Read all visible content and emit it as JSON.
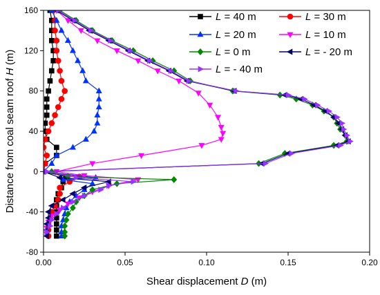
{
  "chart_data": {
    "type": "line",
    "orientation": "vertical-profile",
    "xlabel": {
      "text": "Shear displacement ",
      "var": "D",
      "unit": " (m)"
    },
    "ylabel": {
      "text": "Distance from coal seam roof ",
      "var": "H",
      "unit": " (m)"
    },
    "xlim": [
      0.0,
      0.2
    ],
    "ylim": [
      -80,
      160
    ],
    "xticks": [
      0.0,
      0.05,
      0.1,
      0.15,
      0.2
    ],
    "xtick_labels": [
      "0.00",
      "0.05",
      "0.10",
      "0.15",
      "0.20"
    ],
    "yticks": [
      -80,
      -40,
      0,
      40,
      80,
      120,
      160
    ],
    "ytick_labels": [
      "-80",
      "-40",
      "0",
      "40",
      "80",
      "120",
      "160"
    ],
    "grid": false,
    "legend_placement": "top-right",
    "series": [
      {
        "name": {
          "var": "L",
          "text": " = 40 m"
        },
        "color": "#000000",
        "marker": "square",
        "points": [
          [
            0.004,
            160
          ],
          [
            0.005,
            150
          ],
          [
            0.005,
            140
          ],
          [
            0.005,
            130
          ],
          [
            0.006,
            120
          ],
          [
            0.006,
            110
          ],
          [
            0.005,
            100
          ],
          [
            0.004,
            90
          ],
          [
            0.003,
            80
          ],
          [
            0.002,
            72
          ],
          [
            0.002,
            64
          ],
          [
            0.002,
            56
          ],
          [
            0.001,
            48
          ],
          [
            0.001,
            40
          ],
          [
            0.002,
            32
          ],
          [
            0.008,
            24
          ],
          [
            0.008,
            16
          ],
          [
            0.001,
            8
          ],
          [
            0.0,
            0
          ],
          [
            0.014,
            -5
          ],
          [
            0.012,
            -10
          ],
          [
            0.011,
            -16
          ],
          [
            0.009,
            -22
          ],
          [
            0.008,
            -28
          ],
          [
            0.008,
            -34
          ],
          [
            0.008,
            -40
          ],
          [
            0.008,
            -46
          ],
          [
            0.008,
            -52
          ],
          [
            0.008,
            -58
          ],
          [
            0.008,
            -64
          ]
        ]
      },
      {
        "name": {
          "var": "L",
          "text": " = 30 m"
        },
        "color": "#ff0000",
        "marker": "circle",
        "points": [
          [
            0.006,
            160
          ],
          [
            0.007,
            150
          ],
          [
            0.007,
            140
          ],
          [
            0.008,
            130
          ],
          [
            0.008,
            120
          ],
          [
            0.009,
            110
          ],
          [
            0.01,
            100
          ],
          [
            0.011,
            90
          ],
          [
            0.013,
            80
          ],
          [
            0.011,
            72
          ],
          [
            0.009,
            64
          ],
          [
            0.007,
            56
          ],
          [
            0.005,
            48
          ],
          [
            0.003,
            40
          ],
          [
            0.001,
            32
          ],
          [
            0.0,
            24
          ],
          [
            0.002,
            16
          ],
          [
            0.001,
            8
          ],
          [
            0.0,
            0
          ],
          [
            0.022,
            -5
          ],
          [
            0.016,
            -10
          ],
          [
            0.01,
            -16
          ],
          [
            0.01,
            -22
          ],
          [
            0.009,
            -28
          ],
          [
            0.007,
            -34
          ],
          [
            0.005,
            -40
          ],
          [
            0.004,
            -46
          ],
          [
            0.003,
            -52
          ],
          [
            0.003,
            -58
          ],
          [
            0.003,
            -64
          ]
        ]
      },
      {
        "name": {
          "var": "L",
          "text": " = 20 m"
        },
        "color": "#0033ff",
        "marker": "triangle-up",
        "points": [
          [
            0.005,
            160
          ],
          [
            0.008,
            150
          ],
          [
            0.011,
            140
          ],
          [
            0.015,
            130
          ],
          [
            0.018,
            120
          ],
          [
            0.021,
            110
          ],
          [
            0.024,
            100
          ],
          [
            0.026,
            90
          ],
          [
            0.034,
            80
          ],
          [
            0.034,
            72
          ],
          [
            0.034,
            64
          ],
          [
            0.033,
            56
          ],
          [
            0.033,
            48
          ],
          [
            0.031,
            40
          ],
          [
            0.026,
            32
          ],
          [
            0.018,
            24
          ],
          [
            0.008,
            16
          ],
          [
            0.005,
            8
          ],
          [
            0.0,
            0
          ],
          [
            0.032,
            -6
          ],
          [
            0.012,
            -8
          ],
          [
            0.03,
            -12
          ],
          [
            0.025,
            -18
          ],
          [
            0.02,
            -24
          ],
          [
            0.016,
            -30
          ],
          [
            0.014,
            -36
          ],
          [
            0.013,
            -42
          ],
          [
            0.012,
            -48
          ],
          [
            0.011,
            -54
          ],
          [
            0.011,
            -60
          ],
          [
            0.011,
            -64
          ]
        ]
      },
      {
        "name": {
          "var": "L",
          "text": " = 10 m"
        },
        "color": "#ff00ff",
        "marker": "triangle-down",
        "points": [
          [
            0.008,
            160
          ],
          [
            0.015,
            150
          ],
          [
            0.023,
            140
          ],
          [
            0.033,
            130
          ],
          [
            0.045,
            120
          ],
          [
            0.058,
            110
          ],
          [
            0.07,
            100
          ],
          [
            0.083,
            90
          ],
          [
            0.095,
            78
          ],
          [
            0.102,
            66
          ],
          [
            0.107,
            54
          ],
          [
            0.109,
            44
          ],
          [
            0.11,
            38
          ],
          [
            0.109,
            32
          ],
          [
            0.097,
            26
          ],
          [
            0.06,
            16
          ],
          [
            0.03,
            8
          ],
          [
            0.008,
            0
          ],
          [
            0.025,
            -4
          ],
          [
            0.058,
            -8
          ],
          [
            0.04,
            -14
          ],
          [
            0.03,
            -20
          ],
          [
            0.022,
            -26
          ],
          [
            0.015,
            -32
          ],
          [
            0.01,
            -38
          ],
          [
            0.005,
            -44
          ],
          [
            0.003,
            -50
          ],
          [
            0.002,
            -56
          ],
          [
            0.002,
            -62
          ]
        ]
      },
      {
        "name": {
          "var": "L",
          "text": " = 0 m"
        },
        "color": "#008800",
        "marker": "diamond",
        "points": [
          [
            0.01,
            160
          ],
          [
            0.02,
            150
          ],
          [
            0.03,
            140
          ],
          [
            0.042,
            130
          ],
          [
            0.055,
            120
          ],
          [
            0.067,
            110
          ],
          [
            0.08,
            100
          ],
          [
            0.09,
            90
          ],
          [
            0.116,
            80
          ],
          [
            0.145,
            76
          ],
          [
            0.155,
            72
          ],
          [
            0.165,
            66
          ],
          [
            0.172,
            60
          ],
          [
            0.178,
            54
          ],
          [
            0.18,
            48
          ],
          [
            0.182,
            42
          ],
          [
            0.185,
            36
          ],
          [
            0.186,
            30
          ],
          [
            0.178,
            26
          ],
          [
            0.148,
            18
          ],
          [
            0.132,
            8
          ],
          [
            0.005,
            0
          ],
          [
            0.015,
            -5
          ],
          [
            0.08,
            -8
          ],
          [
            0.045,
            -12
          ],
          [
            0.03,
            -18
          ],
          [
            0.025,
            -24
          ],
          [
            0.02,
            -30
          ],
          [
            0.018,
            -36
          ],
          [
            0.015,
            -42
          ],
          [
            0.014,
            -48
          ],
          [
            0.013,
            -54
          ],
          [
            0.013,
            -60
          ],
          [
            0.013,
            -64
          ]
        ]
      },
      {
        "name": {
          "var": "L",
          "text": " = - 20 m"
        },
        "color": "#000066",
        "marker": "triangle-left",
        "points": [
          [
            0.008,
            160
          ],
          [
            0.018,
            150
          ],
          [
            0.028,
            140
          ],
          [
            0.04,
            130
          ],
          [
            0.052,
            120
          ],
          [
            0.064,
            110
          ],
          [
            0.077,
            100
          ],
          [
            0.088,
            90
          ],
          [
            0.117,
            80
          ],
          [
            0.148,
            76
          ],
          [
            0.158,
            72
          ],
          [
            0.166,
            66
          ],
          [
            0.173,
            60
          ],
          [
            0.178,
            54
          ],
          [
            0.181,
            48
          ],
          [
            0.183,
            42
          ],
          [
            0.185,
            36
          ],
          [
            0.187,
            30
          ],
          [
            0.18,
            26
          ],
          [
            0.15,
            18
          ],
          [
            0.134,
            8
          ],
          [
            0.0,
            0
          ],
          [
            0.01,
            -6
          ],
          [
            0.04,
            -10
          ],
          [
            0.025,
            -16
          ],
          [
            0.018,
            -22
          ],
          [
            0.012,
            -28
          ],
          [
            0.005,
            -34
          ],
          [
            0.003,
            -40
          ],
          [
            0.003,
            -46
          ],
          [
            0.002,
            -52
          ],
          [
            0.002,
            -58
          ],
          [
            0.002,
            -64
          ]
        ]
      },
      {
        "name": {
          "var": "L",
          "text": " = - 40 m"
        },
        "color": "#9933ff",
        "marker": "triangle-right",
        "points": [
          [
            0.009,
            160
          ],
          [
            0.019,
            150
          ],
          [
            0.029,
            140
          ],
          [
            0.041,
            130
          ],
          [
            0.053,
            120
          ],
          [
            0.065,
            110
          ],
          [
            0.078,
            100
          ],
          [
            0.089,
            90
          ],
          [
            0.118,
            80
          ],
          [
            0.15,
            76
          ],
          [
            0.16,
            72
          ],
          [
            0.168,
            66
          ],
          [
            0.175,
            60
          ],
          [
            0.18,
            54
          ],
          [
            0.183,
            48
          ],
          [
            0.184,
            42
          ],
          [
            0.186,
            36
          ],
          [
            0.188,
            30
          ],
          [
            0.182,
            26
          ],
          [
            0.152,
            18
          ],
          [
            0.136,
            8
          ],
          [
            0.002,
            0
          ],
          [
            0.02,
            -6
          ],
          [
            0.055,
            -10
          ],
          [
            0.04,
            -14
          ],
          [
            0.035,
            -18
          ],
          [
            0.025,
            -24
          ],
          [
            0.018,
            -30
          ],
          [
            0.012,
            -36
          ],
          [
            0.008,
            -42
          ],
          [
            0.005,
            -48
          ],
          [
            0.004,
            -54
          ],
          [
            0.002,
            -60
          ]
        ]
      }
    ]
  }
}
